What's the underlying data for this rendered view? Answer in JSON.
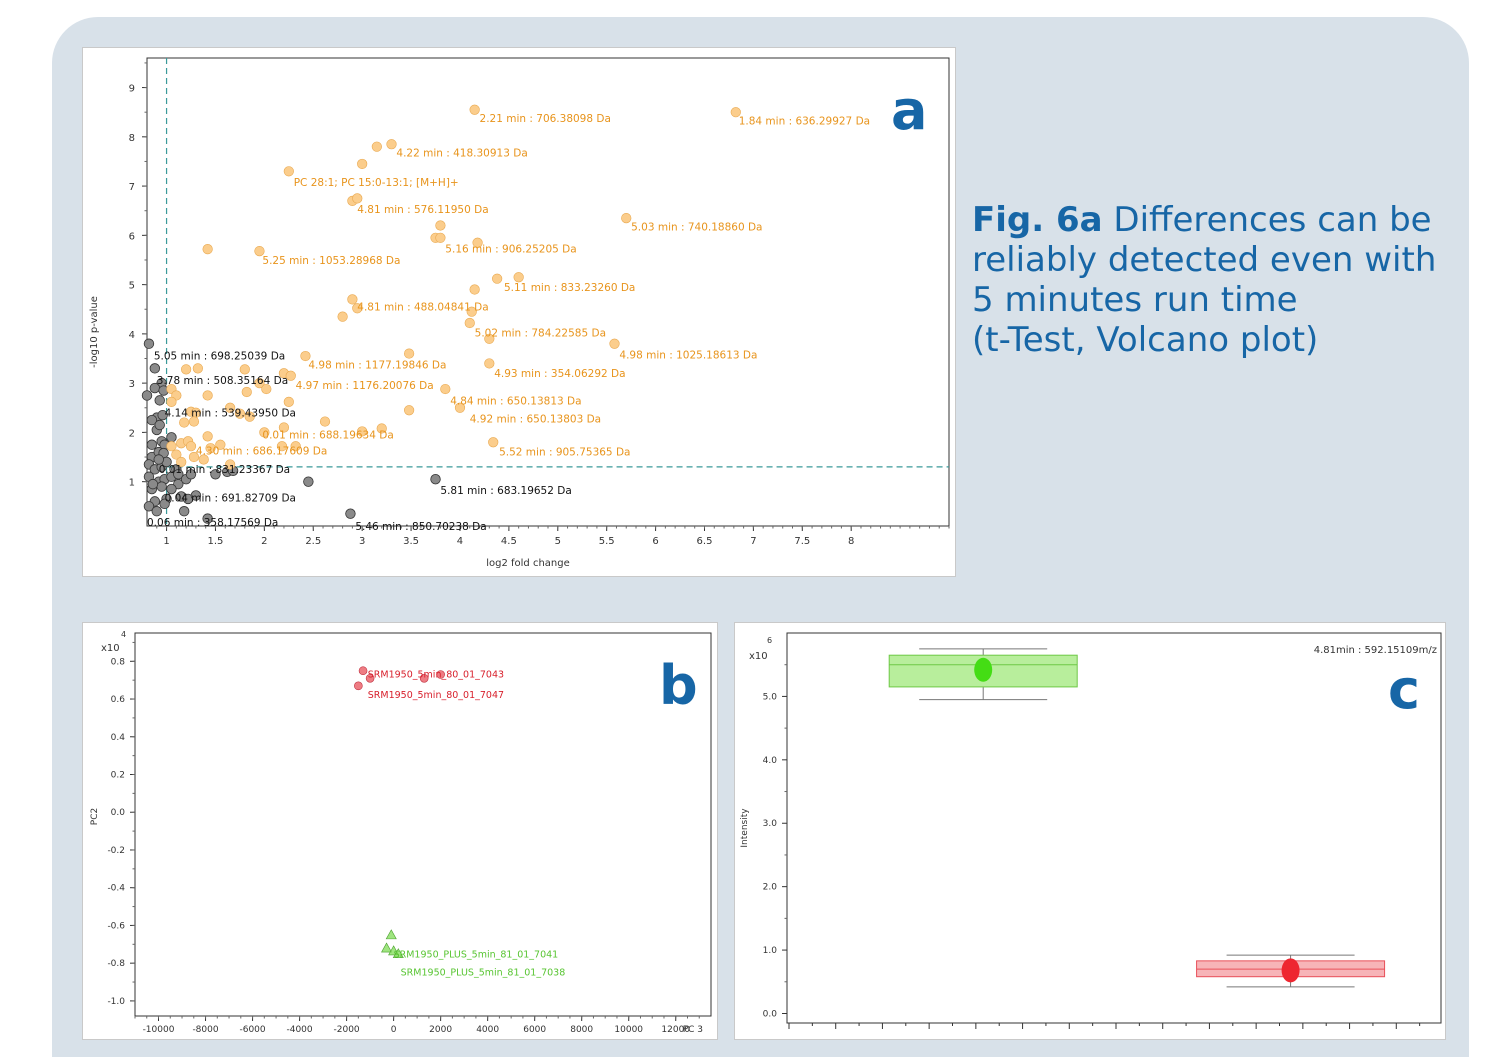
{
  "caption": {
    "fig_label": "Fig. 6a",
    "line1": "Differences can be reliably detected even with 5 minutes run time",
    "line2": "(t-Test, Volcano plot)"
  },
  "panels": {
    "a": "a",
    "b": "b",
    "c": "c"
  },
  "colors": {
    "significant": "#fbcd8c",
    "nonsignificant": "#8a8a8a",
    "threshold": "#3a9a9a",
    "label_sig": "#e8941c",
    "accent": "#1766a6",
    "group_red": "#e8505a",
    "group_green": "#7fdc55"
  },
  "chart_data": [
    {
      "type": "scatter",
      "panel": "a",
      "xlabel": "log2 fold change",
      "ylabel": "-log10 p-value",
      "xlim": [
        0.8,
        9.0
      ],
      "ylim": [
        0.1,
        9.6
      ],
      "xticks": [
        1,
        1.5,
        2,
        2.5,
        3,
        3.5,
        4,
        4.5,
        5,
        5.5,
        6,
        6.5,
        7,
        7.5,
        8
      ],
      "yticks": [
        1,
        2,
        3,
        4,
        5,
        6,
        7,
        8,
        9
      ],
      "thresholds": {
        "x": 1.0,
        "y": 1.3
      },
      "significant_points": [
        [
          4.15,
          8.55
        ],
        [
          6.82,
          8.5
        ],
        [
          3.15,
          7.8
        ],
        [
          3.3,
          7.85
        ],
        [
          3.0,
          7.45
        ],
        [
          2.25,
          7.3
        ],
        [
          2.9,
          6.7
        ],
        [
          2.95,
          6.75
        ],
        [
          5.7,
          6.35
        ],
        [
          3.8,
          6.2
        ],
        [
          3.75,
          5.95
        ],
        [
          3.8,
          5.95
        ],
        [
          4.18,
          5.85
        ],
        [
          1.42,
          5.72
        ],
        [
          1.95,
          5.68
        ],
        [
          4.38,
          5.12
        ],
        [
          4.6,
          5.15
        ],
        [
          4.15,
          4.9
        ],
        [
          2.9,
          4.7
        ],
        [
          2.95,
          4.52
        ],
        [
          2.8,
          4.35
        ],
        [
          4.12,
          4.45
        ],
        [
          4.1,
          4.22
        ],
        [
          4.3,
          3.9
        ],
        [
          5.58,
          3.8
        ],
        [
          3.48,
          3.6
        ],
        [
          2.42,
          3.55
        ],
        [
          4.3,
          3.4
        ],
        [
          1.2,
          3.28
        ],
        [
          1.32,
          3.3
        ],
        [
          1.8,
          3.28
        ],
        [
          2.2,
          3.2
        ],
        [
          2.27,
          3.15
        ],
        [
          1.95,
          3.0
        ],
        [
          1.05,
          2.88
        ],
        [
          1.1,
          2.75
        ],
        [
          1.42,
          2.75
        ],
        [
          1.82,
          2.82
        ],
        [
          2.02,
          2.88
        ],
        [
          3.85,
          2.88
        ],
        [
          2.25,
          2.62
        ],
        [
          1.05,
          2.62
        ],
        [
          1.25,
          2.42
        ],
        [
          1.3,
          2.4
        ],
        [
          1.65,
          2.5
        ],
        [
          1.75,
          2.38
        ],
        [
          1.85,
          2.32
        ],
        [
          3.48,
          2.45
        ],
        [
          4.0,
          2.5
        ],
        [
          2.62,
          2.22
        ],
        [
          1.18,
          2.2
        ],
        [
          1.28,
          2.22
        ],
        [
          2.2,
          2.1
        ],
        [
          1.42,
          1.92
        ],
        [
          2.0,
          2.0
        ],
        [
          3.0,
          2.02
        ],
        [
          3.2,
          2.08
        ],
        [
          1.15,
          1.78
        ],
        [
          1.22,
          1.82
        ],
        [
          1.05,
          1.72
        ],
        [
          1.25,
          1.72
        ],
        [
          1.45,
          1.68
        ],
        [
          1.55,
          1.75
        ],
        [
          2.18,
          1.72
        ],
        [
          2.32,
          1.72
        ],
        [
          1.1,
          1.55
        ],
        [
          1.28,
          1.5
        ],
        [
          1.38,
          1.45
        ],
        [
          1.65,
          1.35
        ],
        [
          1.15,
          1.4
        ],
        [
          4.34,
          1.8
        ]
      ],
      "nonsignificant_points": [
        [
          0.82,
          3.8
        ],
        [
          0.88,
          3.3
        ],
        [
          0.95,
          3.0
        ],
        [
          0.88,
          2.9
        ],
        [
          0.8,
          2.75
        ],
        [
          0.97,
          2.85
        ],
        [
          0.93,
          2.65
        ],
        [
          0.9,
          2.3
        ],
        [
          0.85,
          2.25
        ],
        [
          0.96,
          2.35
        ],
        [
          0.9,
          2.05
        ],
        [
          0.95,
          1.82
        ],
        [
          0.85,
          1.75
        ],
        [
          0.98,
          1.75
        ],
        [
          0.85,
          1.5
        ],
        [
          0.92,
          1.6
        ],
        [
          0.97,
          1.58
        ],
        [
          0.82,
          1.35
        ],
        [
          0.88,
          1.25
        ],
        [
          0.95,
          1.3
        ],
        [
          0.82,
          1.1
        ],
        [
          0.92,
          1.0
        ],
        [
          0.98,
          1.05
        ],
        [
          0.85,
          0.85
        ],
        [
          0.95,
          0.9
        ],
        [
          0.88,
          0.6
        ],
        [
          0.82,
          0.5
        ],
        [
          0.9,
          0.4
        ],
        [
          1.05,
          1.1
        ],
        [
          1.1,
          1.25
        ],
        [
          1.12,
          0.95
        ],
        [
          1.05,
          0.85
        ],
        [
          1.15,
          0.7
        ],
        [
          1.22,
          0.65
        ],
        [
          1.0,
          0.65
        ],
        [
          1.12,
          1.15
        ],
        [
          1.2,
          1.05
        ],
        [
          1.18,
          0.4
        ],
        [
          1.42,
          0.25
        ],
        [
          1.5,
          1.15
        ],
        [
          1.62,
          1.2
        ],
        [
          1.68,
          1.22
        ],
        [
          1.25,
          1.15
        ],
        [
          2.45,
          1.0
        ],
        [
          3.75,
          1.05
        ],
        [
          2.88,
          0.35
        ],
        [
          0.93,
          2.15
        ],
        [
          1.0,
          1.4
        ],
        [
          0.86,
          0.95
        ],
        [
          0.98,
          0.55
        ],
        [
          1.3,
          0.72
        ],
        [
          1.05,
          1.9
        ],
        [
          0.92,
          1.45
        ]
      ],
      "annotations": [
        {
          "x": 4.2,
          "y": 8.3,
          "text": "2.21 min : 706.38098 Da",
          "group": "sig"
        },
        {
          "x": 6.85,
          "y": 8.25,
          "text": "1.84 min : 636.29927 Da",
          "group": "sig"
        },
        {
          "x": 3.35,
          "y": 7.6,
          "text": "4.22 min : 418.30913 Da",
          "group": "sig"
        },
        {
          "x": 2.3,
          "y": 7.0,
          "text": "PC 28:1; PC 15:0-13:1; [M+H]+",
          "group": "sig"
        },
        {
          "x": 2.95,
          "y": 6.45,
          "text": "4.81 min : 576.11950 Da",
          "group": "sig"
        },
        {
          "x": 5.75,
          "y": 6.1,
          "text": "5.03 min : 740.18860 Da",
          "group": "sig"
        },
        {
          "x": 3.85,
          "y": 5.65,
          "text": "5.16 min : 906.25205 Da",
          "group": "sig"
        },
        {
          "x": 1.98,
          "y": 5.42,
          "text": "5.25 min : 1053.28968 Da",
          "group": "sig"
        },
        {
          "x": 4.45,
          "y": 4.87,
          "text": "5.11 min : 833.23260 Da",
          "group": "sig"
        },
        {
          "x": 2.95,
          "y": 4.47,
          "text": "4.81 min : 488.04841 Da",
          "group": "sig"
        },
        {
          "x": 4.15,
          "y": 3.95,
          "text": "5.02 min : 784.22585 Da",
          "group": "sig"
        },
        {
          "x": 5.63,
          "y": 3.5,
          "text": "4.98 min : 1025.18613 Da",
          "group": "sig"
        },
        {
          "x": 2.45,
          "y": 3.3,
          "text": "4.98 min : 1177.19846 Da",
          "group": "sig"
        },
        {
          "x": 4.35,
          "y": 3.12,
          "text": "4.93 min : 354.06292 Da",
          "group": "sig"
        },
        {
          "x": 2.32,
          "y": 2.88,
          "text": "4.97 min : 1176.20076 Da",
          "group": "sig"
        },
        {
          "x": 3.9,
          "y": 2.57,
          "text": "4.84 min : 650.13813 Da",
          "group": "sig"
        },
        {
          "x": 4.1,
          "y": 2.2,
          "text": "4.92 min : 650.13803 Da",
          "group": "sig"
        },
        {
          "x": 1.98,
          "y": 1.88,
          "text": "0.01 min : 688.19634 Da",
          "group": "sig"
        },
        {
          "x": 1.3,
          "y": 1.55,
          "text": "4.30 min : 686.17609 Da",
          "group": "sig"
        },
        {
          "x": 4.4,
          "y": 1.53,
          "text": "5.52 min : 905.75365 Da",
          "group": "sig"
        },
        {
          "x": 0.87,
          "y": 3.48,
          "text": "5.05 min : 698.25039 Da",
          "group": "ns"
        },
        {
          "x": 0.9,
          "y": 2.98,
          "text": "3.78 min : 508.35164 Da",
          "group": "ns"
        },
        {
          "x": 0.98,
          "y": 2.32,
          "text": "4.14 min : 539.43950 Da",
          "group": "ns"
        },
        {
          "x": 0.92,
          "y": 1.18,
          "text": "0.01 min : 831.23367 Da",
          "group": "ns"
        },
        {
          "x": 0.98,
          "y": 0.6,
          "text": "0.04 min : 691.82709 Da",
          "group": "ns"
        },
        {
          "x": 0.8,
          "y": 0.1,
          "text": "0.06 min : 358.17569 Da",
          "group": "ns"
        },
        {
          "x": 3.8,
          "y": 0.75,
          "text": "5.81 min : 683.19652 Da",
          "group": "ns"
        },
        {
          "x": 2.93,
          "y": 0.02,
          "text": "5.46 min : 850.70238 Da",
          "group": "ns"
        }
      ]
    },
    {
      "type": "scatter",
      "panel": "b",
      "xlabel": "PC 3",
      "ylabel": "PC2",
      "y_multiplier": "x10",
      "y_exponent": "4",
      "xlim": [
        -11000,
        13500
      ],
      "ylim": [
        -1.08,
        0.95
      ],
      "xticks": [
        -10000,
        -8000,
        -6000,
        -4000,
        -2000,
        0,
        2000,
        4000,
        6000,
        8000,
        10000,
        12000
      ],
      "yticks": [
        "0.8",
        "0.6",
        "0.4",
        "0.2",
        "0.0",
        "-0.2",
        "-0.4",
        "-0.6",
        "-0.8",
        "-1.0"
      ],
      "series": [
        {
          "marker": "circle",
          "color": "#e8505a",
          "points": [
            [
              -1300,
              0.75
            ],
            [
              -1000,
              0.71
            ],
            [
              -1500,
              0.67
            ],
            [
              1300,
              0.71
            ],
            [
              2000,
              0.73
            ]
          ],
          "labels": [
            {
              "x": -1100,
              "y": 0.715,
              "text": "SRM1950_5min_80_01_7043"
            },
            {
              "x": -1100,
              "y": 0.605,
              "text": "SRM1950_5min_80_01_7047"
            }
          ]
        },
        {
          "marker": "triangle",
          "color": "#7fdc55",
          "points": [
            [
              -100,
              -0.65
            ],
            [
              -300,
              -0.72
            ],
            [
              0,
              -0.735
            ],
            [
              200,
              -0.75
            ]
          ],
          "labels": [
            {
              "x": 0,
              "y": -0.77,
              "text": "SRM1950_PLUS_5min_81_01_7041"
            },
            {
              "x": 300,
              "y": -0.865,
              "text": "SRM1950_PLUS_5min_81_01_7038"
            }
          ]
        }
      ]
    },
    {
      "type": "box",
      "panel": "c",
      "title": "4.81min : 592.15109m/z",
      "ylabel": "Intensity",
      "y_multiplier": "x10",
      "y_exponent": "6",
      "ylim": [
        -0.15,
        6.0
      ],
      "yticks": [
        "0.0",
        "1.0",
        "2.0",
        "3.0",
        "4.0",
        "5.0"
      ],
      "boxes": [
        {
          "group": "green",
          "q1": 5.15,
          "median": 5.5,
          "q3": 5.65,
          "min": 4.95,
          "max": 5.75,
          "mean": 5.42,
          "center": 0.3
        },
        {
          "group": "red",
          "q1": 0.58,
          "median": 0.7,
          "q3": 0.83,
          "min": 0.42,
          "max": 0.92,
          "mean": 0.68,
          "center": 0.77
        }
      ]
    }
  ]
}
